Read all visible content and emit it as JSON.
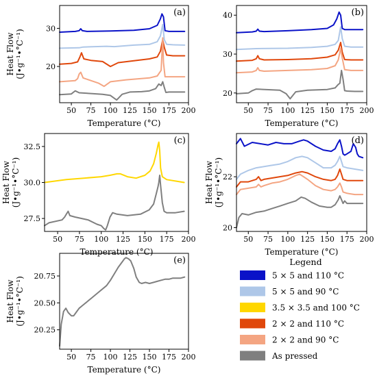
{
  "chart_data": [
    {
      "id": "a",
      "type": "line",
      "panel_label": "(a)",
      "xlabel": "Temperature (°C)",
      "ylabel": [
        "Heat Flow",
        "(J•g⁻¹•°C⁻¹)"
      ],
      "xlim": [
        35,
        200
      ],
      "ylim": [
        10.5,
        36
      ],
      "xticks": [
        50,
        75,
        100,
        125,
        150,
        175,
        200
      ],
      "yticks": [
        20,
        30
      ],
      "ytick_labels": [
        "20",
        "30"
      ],
      "series": [
        {
          "color": "#0a12c8",
          "x": [
            35,
            55,
            60,
            62,
            64,
            70,
            100,
            130,
            150,
            160,
            164,
            166,
            168,
            170,
            175,
            185,
            195
          ],
          "y": [
            29,
            29.2,
            29.4,
            29.9,
            29.4,
            29.2,
            29.3,
            29.5,
            29.9,
            30.8,
            32.5,
            33.8,
            33,
            29.4,
            29.2,
            29.2,
            29.2
          ]
        },
        {
          "color": "#aec7e8",
          "x": [
            35,
            60,
            65,
            80,
            95,
            105,
            130,
            150,
            160,
            164,
            167,
            169,
            172,
            180,
            195
          ],
          "y": [
            24.8,
            24.9,
            25.1,
            25.2,
            25.3,
            25.2,
            25.6,
            25.8,
            26.5,
            28,
            31,
            27,
            25.8,
            25.7,
            25.6
          ]
        },
        {
          "color": "#e0470b",
          "x": [
            35,
            50,
            58,
            61,
            63,
            66,
            75,
            90,
            100,
            110,
            130,
            150,
            160,
            164,
            167,
            169,
            172,
            180,
            195
          ],
          "y": [
            20.6,
            20.8,
            21.2,
            22.5,
            23.6,
            22,
            21.6,
            21.3,
            20,
            21,
            21.5,
            22,
            22.5,
            24,
            27,
            25,
            23,
            22.8,
            22.8
          ]
        },
        {
          "color": "#f4a582",
          "x": [
            35,
            55,
            58,
            60,
            62,
            65,
            75,
            85,
            92,
            100,
            120,
            150,
            160,
            165,
            167,
            168,
            170,
            175,
            195
          ],
          "y": [
            16,
            16.3,
            16.8,
            18,
            18.5,
            17,
            16.3,
            15.6,
            14.8,
            16,
            16.5,
            17,
            17.5,
            19,
            27.5,
            21,
            17.3,
            17.3,
            17.3
          ]
        },
        {
          "color": "#7f7f7f",
          "x": [
            35,
            50,
            53,
            55,
            60,
            90,
            100,
            108,
            115,
            125,
            140,
            150,
            158,
            162,
            165,
            167,
            169,
            171,
            175,
            185,
            195
          ],
          "y": [
            12.6,
            12.8,
            13.3,
            13.6,
            13.1,
            12.7,
            12.4,
            11.2,
            12.7,
            13.3,
            13.4,
            13.6,
            14.2,
            15.4,
            15,
            16,
            14.5,
            13.2,
            13.3,
            13.3,
            13.3
          ]
        }
      ]
    },
    {
      "id": "b",
      "type": "line",
      "panel_label": "(b)",
      "xlabel": "Temperature (°C)",
      "ylabel": [],
      "xlim": [
        35,
        200
      ],
      "ylim": [
        17.5,
        42.5
      ],
      "xticks": [
        50,
        75,
        100,
        125,
        150,
        175,
        200
      ],
      "yticks": [
        20,
        30,
        40
      ],
      "ytick_labels": [
        "20",
        "30",
        "40"
      ],
      "series": [
        {
          "color": "#0a12c8",
          "x": [
            35,
            55,
            60,
            62,
            64,
            70,
            100,
            130,
            150,
            158,
            162,
            165,
            167,
            169,
            172,
            180,
            195
          ],
          "y": [
            35.5,
            35.7,
            35.9,
            36.4,
            35.9,
            35.8,
            36,
            36.3,
            36.6,
            37.5,
            39,
            40.8,
            40,
            36.6,
            36.3,
            36.3,
            36.3
          ]
        },
        {
          "color": "#aec7e8",
          "x": [
            35,
            60,
            100,
            130,
            150,
            160,
            164,
            167,
            169,
            172,
            180,
            195
          ],
          "y": [
            31.2,
            31.4,
            31.5,
            31.7,
            32,
            32.5,
            33.5,
            37,
            34,
            32,
            31.8,
            31.8
          ]
        },
        {
          "color": "#e0470b",
          "x": [
            35,
            55,
            60,
            62,
            64,
            70,
            100,
            130,
            150,
            160,
            164,
            167,
            169,
            172,
            180,
            195
          ],
          "y": [
            28.2,
            28.4,
            28.8,
            29.6,
            28.8,
            28.5,
            28.6,
            28.8,
            29.2,
            29.8,
            31,
            33,
            30.5,
            28.6,
            28.5,
            28.5
          ]
        },
        {
          "color": "#f4a582",
          "x": [
            35,
            55,
            60,
            62,
            64,
            70,
            100,
            130,
            150,
            160,
            164,
            167,
            169,
            172,
            180,
            195
          ],
          "y": [
            25.2,
            25.4,
            25.8,
            26.5,
            25.8,
            25.6,
            25.8,
            26,
            26.3,
            27,
            28.5,
            31.5,
            29,
            26,
            25.8,
            25.8
          ]
        },
        {
          "color": "#7f7f7f",
          "x": [
            35,
            50,
            55,
            60,
            90,
            98,
            103,
            110,
            125,
            150,
            160,
            164,
            166,
            168,
            170,
            172,
            175,
            185,
            195
          ],
          "y": [
            19.8,
            20,
            20.6,
            21,
            20.7,
            19.8,
            18.5,
            20.3,
            20.7,
            20.9,
            21.3,
            22.2,
            22.5,
            25.8,
            23.5,
            20.6,
            20.5,
            20.4,
            20.4
          ]
        }
      ]
    },
    {
      "id": "c",
      "type": "line",
      "panel_label": "(c)",
      "xlabel": "Temperature (°C)",
      "ylabel": [
        "Heat Flow",
        "(J•g⁻¹•°C⁻¹)"
      ],
      "xlim": [
        35,
        200
      ],
      "ylim": [
        26.6,
        33.4
      ],
      "xticks": [
        50,
        75,
        100,
        125,
        150,
        175,
        200
      ],
      "yticks": [
        27.5,
        30.0,
        32.5
      ],
      "ytick_labels": [
        "27.5",
        "30.0",
        "32.5"
      ],
      "series": [
        {
          "color": "#ffd700",
          "x": [
            35,
            60,
            80,
            100,
            110,
            118,
            122,
            130,
            140,
            150,
            156,
            160,
            163,
            165,
            166,
            167,
            168,
            170,
            175,
            185,
            195
          ],
          "y": [
            30,
            30.2,
            30.3,
            30.4,
            30.5,
            30.6,
            30.6,
            30.4,
            30.3,
            30.5,
            30.8,
            31.3,
            32,
            32.6,
            32.8,
            32.2,
            31,
            30.4,
            30.2,
            30.1,
            30
          ]
        },
        {
          "color": "#7f7f7f",
          "x": [
            35,
            40,
            55,
            58,
            60,
            62,
            64,
            70,
            85,
            95,
            100,
            103,
            105,
            107,
            110,
            113,
            118,
            130,
            145,
            155,
            160,
            163,
            165,
            166,
            167,
            168,
            170,
            172,
            175,
            185,
            195
          ],
          "y": [
            27,
            27.2,
            27.4,
            27.6,
            27.8,
            28,
            27.7,
            27.6,
            27.4,
            27.1,
            27,
            26.8,
            26.7,
            27,
            27.6,
            27.9,
            27.8,
            27.7,
            27.8,
            28.1,
            28.5,
            29.2,
            29.7,
            30,
            30.5,
            29.8,
            28.6,
            28,
            27.9,
            27.9,
            28
          ]
        }
      ]
    },
    {
      "id": "d",
      "type": "line",
      "panel_label": "(d)",
      "xlabel": "Temperature (°C)",
      "ylabel": [
        "Heat Flow",
        "(J•g⁻¹•°C⁻¹)"
      ],
      "xlim": [
        35,
        200
      ],
      "ylim": [
        19.85,
        23.7
      ],
      "xticks": [
        50,
        75,
        100,
        125,
        150,
        175,
        200
      ],
      "yticks": [
        20,
        22
      ],
      "ytick_labels": [
        "20",
        "22"
      ],
      "series": [
        {
          "color": "#0a12c8",
          "x": [
            35,
            40,
            45,
            55,
            65,
            75,
            85,
            95,
            105,
            115,
            120,
            125,
            135,
            145,
            155,
            160,
            163,
            166,
            168,
            170,
            172,
            175,
            180,
            183,
            186,
            188,
            190,
            195
          ],
          "y": [
            23.3,
            23.5,
            23.2,
            23.35,
            23.3,
            23.25,
            23.35,
            23.3,
            23.3,
            23.4,
            23.45,
            23.4,
            23.2,
            23.05,
            23,
            23.1,
            23.3,
            23.45,
            23.2,
            22.9,
            22.85,
            22.9,
            23,
            23.3,
            23.15,
            22.9,
            22.8,
            22.75
          ]
        },
        {
          "color": "#aec7e8",
          "x": [
            35,
            40,
            50,
            60,
            70,
            80,
            90,
            100,
            110,
            118,
            125,
            135,
            145,
            155,
            160,
            163,
            166,
            168,
            170,
            175,
            185,
            195
          ],
          "y": [
            21.9,
            22.1,
            22.25,
            22.35,
            22.4,
            22.45,
            22.5,
            22.6,
            22.75,
            22.8,
            22.75,
            22.55,
            22.35,
            22.35,
            22.45,
            22.6,
            22.8,
            22.6,
            22.4,
            22.35,
            22.3,
            22.25
          ]
        },
        {
          "color": "#e0470b",
          "x": [
            35,
            40,
            50,
            60,
            63,
            66,
            70,
            80,
            90,
            100,
            110,
            118,
            125,
            135,
            145,
            155,
            160,
            163,
            166,
            168,
            170,
            175,
            185,
            195
          ],
          "y": [
            21.6,
            21.8,
            21.8,
            21.9,
            22,
            21.85,
            21.9,
            21.95,
            22,
            22.05,
            22.15,
            22.2,
            22.15,
            22,
            21.9,
            21.85,
            21.9,
            22.05,
            22.3,
            22.1,
            21.9,
            21.85,
            21.85,
            21.85
          ]
        },
        {
          "color": "#f4a582",
          "x": [
            35,
            40,
            50,
            60,
            63,
            66,
            70,
            80,
            90,
            100,
            110,
            115,
            120,
            125,
            135,
            145,
            155,
            160,
            163,
            166,
            168,
            170,
            175,
            185,
            195
          ],
          "y": [
            21.3,
            21.5,
            21.55,
            21.6,
            21.7,
            21.6,
            21.65,
            21.75,
            21.8,
            21.9,
            22.05,
            22.1,
            22,
            21.9,
            21.65,
            21.5,
            21.45,
            21.5,
            21.6,
            21.75,
            21.6,
            21.4,
            21.35,
            21.3,
            21.3
          ]
        },
        {
          "color": "#7f7f7f",
          "x": [
            35,
            38,
            42,
            50,
            60,
            70,
            80,
            90,
            100,
            110,
            117,
            122,
            130,
            140,
            150,
            155,
            160,
            164,
            166,
            168,
            170,
            172,
            175,
            185,
            195
          ],
          "y": [
            20,
            20.4,
            20.55,
            20.5,
            20.6,
            20.65,
            20.75,
            20.85,
            20.95,
            21.05,
            21.2,
            21.15,
            21,
            20.85,
            20.8,
            20.8,
            20.9,
            21.1,
            21.25,
            21.1,
            20.95,
            21.05,
            20.95,
            20.95,
            20.95
          ]
        }
      ]
    },
    {
      "id": "e",
      "type": "line",
      "panel_label": "(e)",
      "xlabel": "Temperature (°C)",
      "ylabel": [
        "Heat Flow",
        "(J•g⁻¹•°C⁻¹)"
      ],
      "xlim": [
        35,
        200
      ],
      "ylim": [
        20.07,
        20.96
      ],
      "xticks": [
        50,
        75,
        100,
        125,
        150,
        175,
        200
      ],
      "yticks": [
        20.25,
        20.5,
        20.75
      ],
      "ytick_labels": [
        "20.25",
        "20.50",
        "20.75"
      ],
      "series": [
        {
          "color": "#7f7f7f",
          "x": [
            35,
            37,
            40,
            43,
            46,
            50,
            53,
            56,
            60,
            65,
            75,
            85,
            95,
            100,
            105,
            110,
            115,
            118,
            120,
            123,
            126,
            130,
            133,
            137,
            140,
            145,
            150,
            155,
            160,
            165,
            170,
            175,
            180,
            190,
            195
          ],
          "y": [
            20.1,
            20.3,
            20.42,
            20.45,
            20.41,
            20.38,
            20.38,
            20.41,
            20.45,
            20.48,
            20.54,
            20.6,
            20.66,
            20.71,
            20.77,
            20.83,
            20.88,
            20.91,
            20.92,
            20.91,
            20.89,
            20.82,
            20.74,
            20.69,
            20.68,
            20.69,
            20.68,
            20.69,
            20.7,
            20.71,
            20.72,
            20.72,
            20.73,
            20.73,
            20.74
          ]
        }
      ]
    }
  ],
  "legend": {
    "title": "Legend",
    "items": [
      {
        "label": "5 × 5 and 110 °C",
        "color": "#0a12c8"
      },
      {
        "label": "5 × 5 and 90 °C",
        "color": "#aec7e8"
      },
      {
        "label": "3.5 × 3.5 and 100 °C",
        "color": "#ffd700"
      },
      {
        "label": "2 × 2 and 110 °C",
        "color": "#e0470b"
      },
      {
        "label": "2 × 2 and 90 °C",
        "color": "#f4a582"
      },
      {
        "label": "As pressed",
        "color": "#7f7f7f"
      }
    ]
  }
}
